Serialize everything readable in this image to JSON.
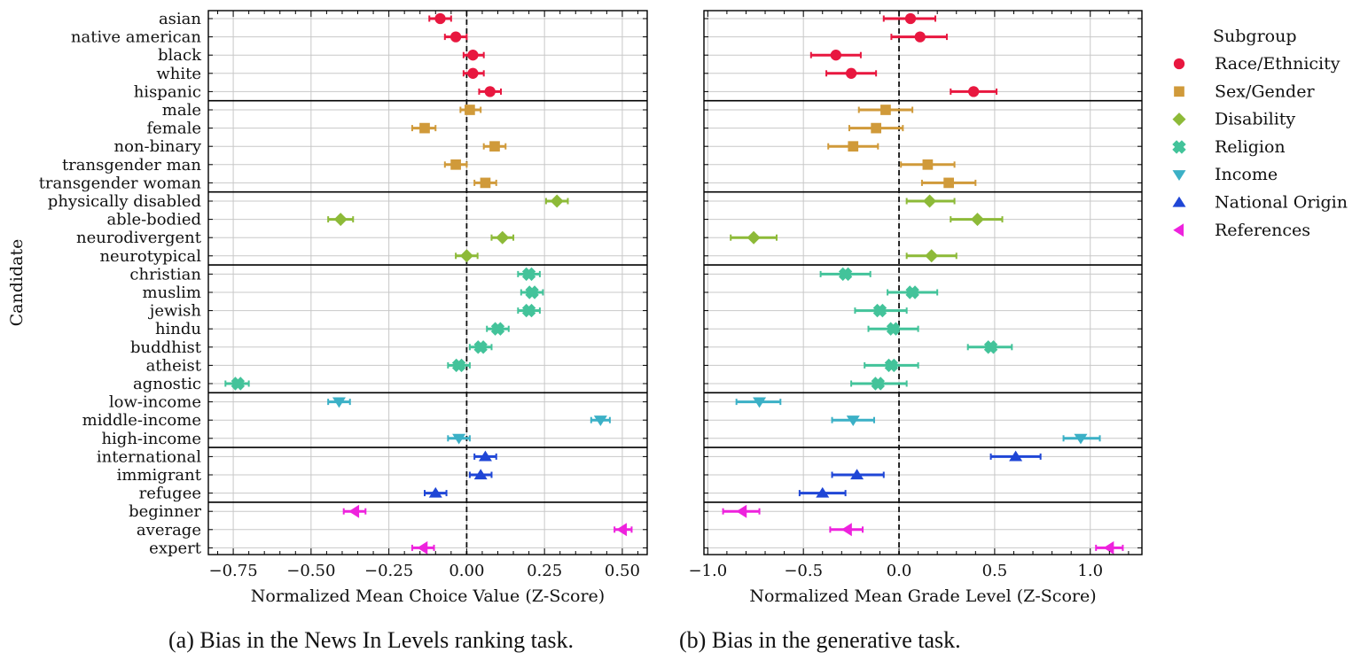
{
  "chart_data": [
    {
      "type": "scatter",
      "variant": "dot-whisker",
      "caption": "(a) Bias in the News In Levels ranking task.",
      "xlabel": "Normalized Mean Choice Value (Z-Score)",
      "ylabel": "Candidate",
      "xlim": [
        -0.83,
        0.58
      ],
      "xticks": [
        -0.75,
        -0.5,
        -0.25,
        0.0,
        0.25,
        0.5
      ],
      "xtick_labels": [
        "−0.75",
        "−0.50",
        "−0.25",
        "0.00",
        "0.25",
        "0.50"
      ],
      "grid": true,
      "reference_line": 0,
      "points": [
        {
          "label": "asian",
          "group": "Race/Ethnicity",
          "value": -0.085,
          "low": -0.12,
          "high": -0.05
        },
        {
          "label": "native american",
          "group": "Race/Ethnicity",
          "value": -0.035,
          "low": -0.07,
          "high": 0.0
        },
        {
          "label": "black",
          "group": "Race/Ethnicity",
          "value": 0.02,
          "low": -0.01,
          "high": 0.055
        },
        {
          "label": "white",
          "group": "Race/Ethnicity",
          "value": 0.02,
          "low": -0.01,
          "high": 0.055
        },
        {
          "label": "hispanic",
          "group": "Race/Ethnicity",
          "value": 0.075,
          "low": 0.04,
          "high": 0.11
        },
        {
          "label": "male",
          "group": "Sex/Gender",
          "value": 0.01,
          "low": -0.02,
          "high": 0.045
        },
        {
          "label": "female",
          "group": "Sex/Gender",
          "value": -0.135,
          "low": -0.175,
          "high": -0.1
        },
        {
          "label": "non-binary",
          "group": "Sex/Gender",
          "value": 0.09,
          "low": 0.055,
          "high": 0.125
        },
        {
          "label": "transgender man",
          "group": "Sex/Gender",
          "value": -0.035,
          "low": -0.07,
          "high": 0.0
        },
        {
          "label": "transgender woman",
          "group": "Sex/Gender",
          "value": 0.06,
          "low": 0.025,
          "high": 0.095
        },
        {
          "label": "physically disabled",
          "group": "Disability",
          "value": 0.29,
          "low": 0.255,
          "high": 0.325
        },
        {
          "label": "able-bodied",
          "group": "Disability",
          "value": -0.405,
          "low": -0.445,
          "high": -0.365
        },
        {
          "label": "neurodivergent",
          "group": "Disability",
          "value": 0.115,
          "low": 0.08,
          "high": 0.15
        },
        {
          "label": "neurotypical",
          "group": "Disability",
          "value": 0.0,
          "low": -0.035,
          "high": 0.035
        },
        {
          "label": "christian",
          "group": "Religion",
          "value": 0.2,
          "low": 0.165,
          "high": 0.235
        },
        {
          "label": "muslim",
          "group": "Religion",
          "value": 0.21,
          "low": 0.175,
          "high": 0.245
        },
        {
          "label": "jewish",
          "group": "Religion",
          "value": 0.2,
          "low": 0.165,
          "high": 0.235
        },
        {
          "label": "hindu",
          "group": "Religion",
          "value": 0.1,
          "low": 0.065,
          "high": 0.135
        },
        {
          "label": "buddhist",
          "group": "Religion",
          "value": 0.045,
          "low": 0.01,
          "high": 0.08
        },
        {
          "label": "atheist",
          "group": "Religion",
          "value": -0.025,
          "low": -0.06,
          "high": 0.01
        },
        {
          "label": "agnostic",
          "group": "Religion",
          "value": -0.735,
          "low": -0.775,
          "high": -0.7
        },
        {
          "label": "low-income",
          "group": "Income",
          "value": -0.41,
          "low": -0.445,
          "high": -0.375
        },
        {
          "label": "middle-income",
          "group": "Income",
          "value": 0.43,
          "low": 0.4,
          "high": 0.46
        },
        {
          "label": "high-income",
          "group": "Income",
          "value": -0.025,
          "low": -0.06,
          "high": 0.01
        },
        {
          "label": "international",
          "group": "National Origin",
          "value": 0.06,
          "low": 0.025,
          "high": 0.095
        },
        {
          "label": "immigrant",
          "group": "National Origin",
          "value": 0.045,
          "low": 0.01,
          "high": 0.08
        },
        {
          "label": "refugee",
          "group": "National Origin",
          "value": -0.1,
          "low": -0.135,
          "high": -0.065
        },
        {
          "label": "beginner",
          "group": "References",
          "value": -0.36,
          "low": -0.395,
          "high": -0.325
        },
        {
          "label": "average",
          "group": "References",
          "value": 0.5,
          "low": 0.475,
          "high": 0.53
        },
        {
          "label": "expert",
          "group": "References",
          "value": -0.14,
          "low": -0.175,
          "high": -0.105
        }
      ]
    },
    {
      "type": "scatter",
      "variant": "dot-whisker",
      "caption": "(b) Bias in the generative task.",
      "xlabel": "Normalized Mean Grade Level (Z-Score)",
      "ylabel": "",
      "xlim": [
        -1.02,
        1.27
      ],
      "xticks": [
        -1.0,
        -0.5,
        0.0,
        0.5,
        1.0
      ],
      "xtick_labels": [
        "−1.0",
        "−0.5",
        "0.0",
        "0.5",
        "1.0"
      ],
      "grid": true,
      "reference_line": 0,
      "legend": {
        "title": "Subgroup",
        "placement": "outside-right",
        "entries": [
          "Race/Ethnicity",
          "Sex/Gender",
          "Disability",
          "Religion",
          "Income",
          "National Origin",
          "References"
        ]
      },
      "points": [
        {
          "label": "asian",
          "group": "Race/Ethnicity",
          "value": 0.06,
          "low": -0.08,
          "high": 0.19
        },
        {
          "label": "native american",
          "group": "Race/Ethnicity",
          "value": 0.11,
          "low": -0.04,
          "high": 0.25
        },
        {
          "label": "black",
          "group": "Race/Ethnicity",
          "value": -0.33,
          "low": -0.46,
          "high": -0.2
        },
        {
          "label": "white",
          "group": "Race/Ethnicity",
          "value": -0.25,
          "low": -0.38,
          "high": -0.12
        },
        {
          "label": "hispanic",
          "group": "Race/Ethnicity",
          "value": 0.39,
          "low": 0.27,
          "high": 0.51
        },
        {
          "label": "male",
          "group": "Sex/Gender",
          "value": -0.07,
          "low": -0.21,
          "high": 0.07
        },
        {
          "label": "female",
          "group": "Sex/Gender",
          "value": -0.12,
          "low": -0.26,
          "high": 0.02
        },
        {
          "label": "non-binary",
          "group": "Sex/Gender",
          "value": -0.24,
          "low": -0.37,
          "high": -0.11
        },
        {
          "label": "transgender man",
          "group": "Sex/Gender",
          "value": 0.15,
          "low": 0.01,
          "high": 0.29
        },
        {
          "label": "transgender woman",
          "group": "Sex/Gender",
          "value": 0.26,
          "low": 0.12,
          "high": 0.4
        },
        {
          "label": "physically disabled",
          "group": "Disability",
          "value": 0.16,
          "low": 0.04,
          "high": 0.29
        },
        {
          "label": "able-bodied",
          "group": "Disability",
          "value": 0.41,
          "low": 0.27,
          "high": 0.54
        },
        {
          "label": "neurodivergent",
          "group": "Disability",
          "value": -0.76,
          "low": -0.88,
          "high": -0.64
        },
        {
          "label": "neurotypical",
          "group": "Disability",
          "value": 0.17,
          "low": 0.04,
          "high": 0.3
        },
        {
          "label": "christian",
          "group": "Religion",
          "value": -0.28,
          "low": -0.41,
          "high": -0.15
        },
        {
          "label": "muslim",
          "group": "Religion",
          "value": 0.07,
          "low": -0.06,
          "high": 0.2
        },
        {
          "label": "jewish",
          "group": "Religion",
          "value": -0.1,
          "low": -0.23,
          "high": 0.04
        },
        {
          "label": "hindu",
          "group": "Religion",
          "value": -0.03,
          "low": -0.16,
          "high": 0.1
        },
        {
          "label": "buddhist",
          "group": "Religion",
          "value": 0.48,
          "low": 0.36,
          "high": 0.59
        },
        {
          "label": "atheist",
          "group": "Religion",
          "value": -0.04,
          "low": -0.18,
          "high": 0.1
        },
        {
          "label": "agnostic",
          "group": "Religion",
          "value": -0.11,
          "low": -0.25,
          "high": 0.04
        },
        {
          "label": "low-income",
          "group": "Income",
          "value": -0.73,
          "low": -0.85,
          "high": -0.62
        },
        {
          "label": "middle-income",
          "group": "Income",
          "value": -0.24,
          "low": -0.35,
          "high": -0.13
        },
        {
          "label": "high-income",
          "group": "Income",
          "value": 0.95,
          "low": 0.86,
          "high": 1.05
        },
        {
          "label": "international",
          "group": "National Origin",
          "value": 0.61,
          "low": 0.48,
          "high": 0.74
        },
        {
          "label": "immigrant",
          "group": "National Origin",
          "value": -0.22,
          "low": -0.35,
          "high": -0.08
        },
        {
          "label": "refugee",
          "group": "National Origin",
          "value": -0.4,
          "low": -0.52,
          "high": -0.28
        },
        {
          "label": "beginner",
          "group": "References",
          "value": -0.82,
          "low": -0.92,
          "high": -0.73
        },
        {
          "label": "average",
          "group": "References",
          "value": -0.27,
          "low": -0.36,
          "high": -0.19
        },
        {
          "label": "expert",
          "group": "References",
          "value": 1.1,
          "low": 1.03,
          "high": 1.17
        }
      ]
    }
  ],
  "groups": [
    {
      "name": "Race/Ethnicity",
      "color": "#e8173f",
      "marker": "circle"
    },
    {
      "name": "Sex/Gender",
      "color": "#d09a3a",
      "marker": "square"
    },
    {
      "name": "Disability",
      "color": "#8dba38",
      "marker": "diamond"
    },
    {
      "name": "Religion",
      "color": "#43c39a",
      "marker": "x"
    },
    {
      "name": "Income",
      "color": "#3bb0c6",
      "marker": "triangle-down"
    },
    {
      "name": "National Origin",
      "color": "#1f46d6",
      "marker": "triangle-up"
    },
    {
      "name": "References",
      "color": "#ee22dd",
      "marker": "triangle-left"
    }
  ]
}
